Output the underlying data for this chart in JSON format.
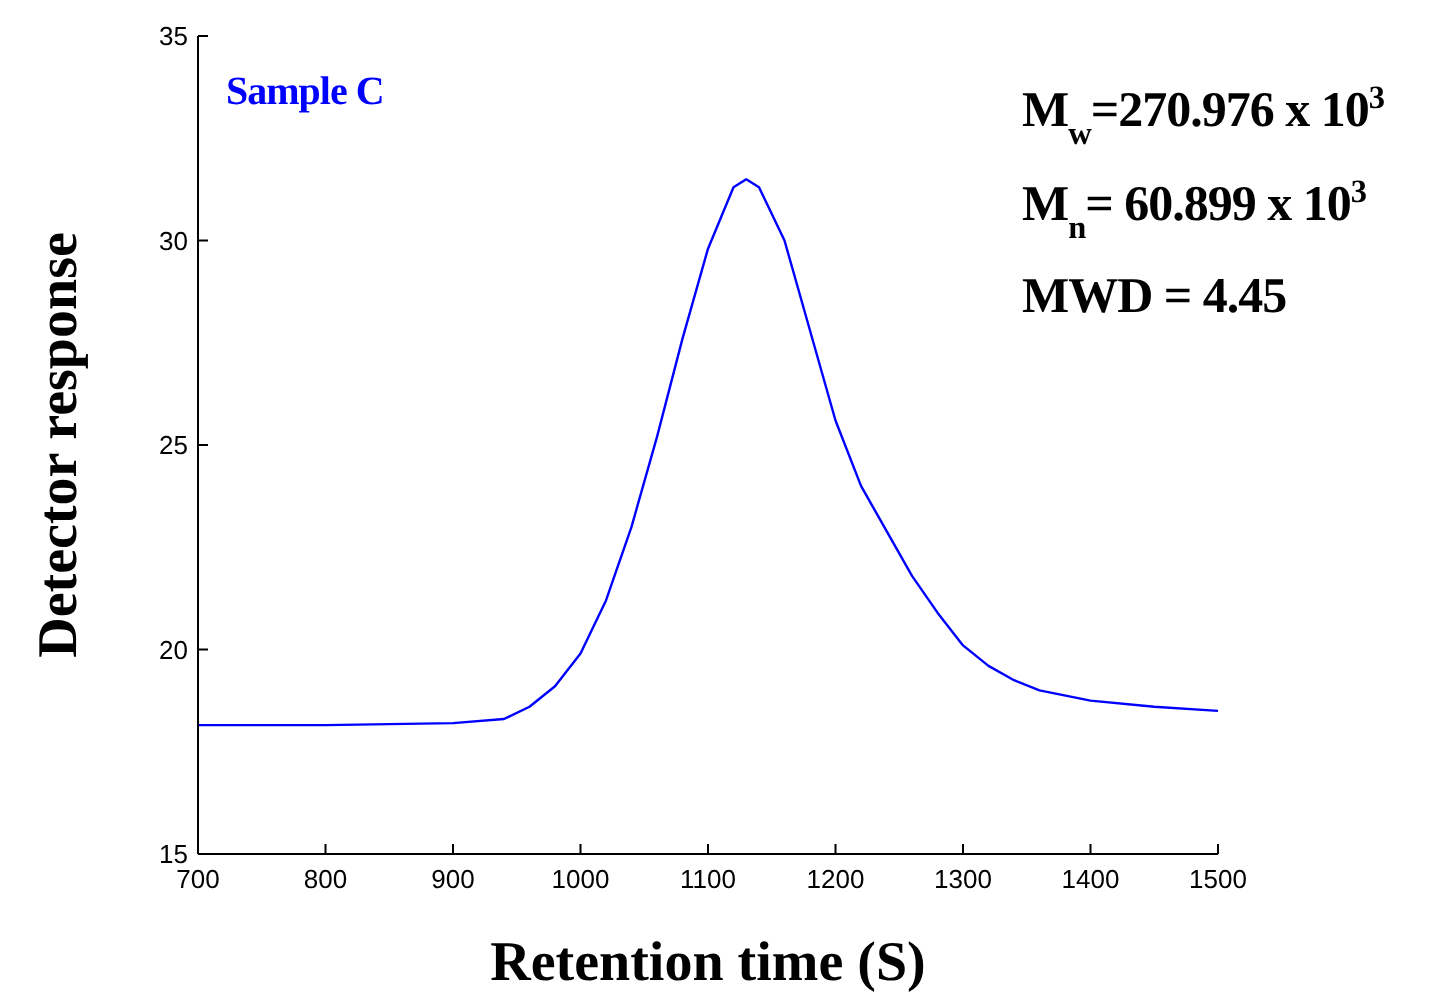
{
  "chart_data": {
    "type": "line",
    "xlabel": "Retention time (S)",
    "ylabel": "Detector response",
    "annotations": [
      "Sample C",
      "M$_{w}$=270.976 x 10$^{3}$",
      "M$_{n}$= 60.899 x 10$^{3}$",
      "MWD = 4.45"
    ],
    "x": [
      700,
      800,
      900,
      940,
      960,
      980,
      1000,
      1020,
      1040,
      1060,
      1080,
      1100,
      1120,
      1130,
      1140,
      1160,
      1180,
      1200,
      1220,
      1240,
      1260,
      1280,
      1300,
      1320,
      1340,
      1360,
      1400,
      1450,
      1500
    ],
    "series": [
      {
        "color": "#0000ff",
        "values": [
          18.15,
          18.15,
          18.2,
          18.3,
          18.6,
          19.1,
          19.9,
          21.2,
          23.0,
          25.2,
          27.6,
          29.8,
          31.3,
          31.5,
          31.3,
          30.0,
          27.8,
          25.6,
          24.0,
          22.9,
          21.8,
          20.9,
          20.1,
          19.6,
          19.25,
          19.0,
          18.75,
          18.6,
          18.5
        ]
      }
    ],
    "xlim": [
      700,
      1500
    ],
    "xticks": [
      700,
      800,
      900,
      1000,
      1100,
      1200,
      1300,
      1400,
      1500
    ],
    "ylim": [
      15,
      35
    ],
    "yticks": [
      15,
      20,
      25,
      30,
      35
    ],
    "grid": false,
    "marker": "none",
    "line_style": "solid"
  }
}
